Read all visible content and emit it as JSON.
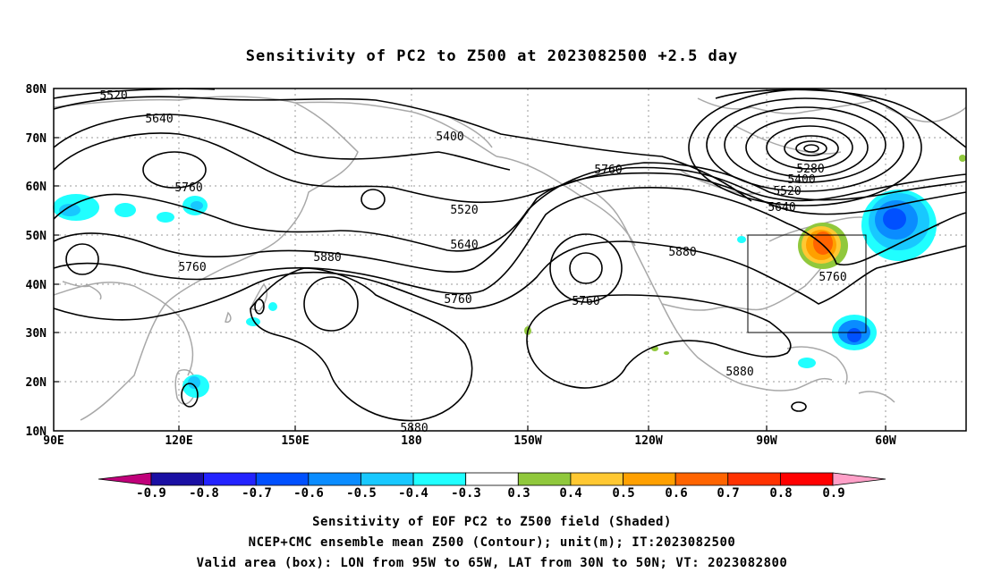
{
  "title": "Sensitivity of PC2 to Z500 at 2023082500 +2.5 day",
  "map": {
    "lon_range": [
      "90E",
      "30W"
    ],
    "lat_range": [
      "10N",
      "80N"
    ],
    "lon_ticks": [
      "90E",
      "120E",
      "150E",
      "180",
      "150W",
      "120W",
      "90W",
      "60W"
    ],
    "lat_ticks": [
      "10N",
      "20N",
      "30N",
      "40N",
      "50N",
      "60N",
      "70N",
      "80N"
    ],
    "gridlines": "dotted",
    "projection": "cylindrical",
    "coastlines_color": "#a8a8a8"
  },
  "contours": {
    "field": "Z500 ensemble mean",
    "unit": "m",
    "labels": [
      "5520",
      "5640",
      "5400",
      "5760",
      "5520",
      "5640",
      "5760",
      "5880",
      "5760",
      "5760",
      "5880",
      "5280",
      "5400",
      "5520",
      "5640",
      "5760",
      "5880",
      "5880"
    ]
  },
  "valid_box": {
    "lon_west": "95W",
    "lon_east": "65W",
    "lat_south": "30N",
    "lat_north": "50N"
  },
  "colorbar": {
    "labels": [
      "-0.9",
      "-0.8",
      "-0.7",
      "-0.6",
      "-0.5",
      "-0.4",
      "-0.3",
      "0.3",
      "0.4",
      "0.5",
      "0.6",
      "0.7",
      "0.8",
      "0.9"
    ],
    "colors": [
      "#c0007a",
      "#1a0fa3",
      "#2323ff",
      "#0050ff",
      "#0a8cff",
      "#18c8ff",
      "#20ffff",
      "#ffffff",
      "#90c83c",
      "#ffc832",
      "#ffa000",
      "#ff6400",
      "#ff3200",
      "#ff0000",
      "#ffa0c8"
    ]
  },
  "captions": [
    "Sensitivity of EOF PC2 to Z500 field (Shaded)",
    "NCEP+CMC ensemble mean Z500 (Contour); unit(m); IT:2023082500",
    "Valid area (box): LON from 95W to 65W, LAT from 30N to 50N; VT: 2023082800"
  ]
}
